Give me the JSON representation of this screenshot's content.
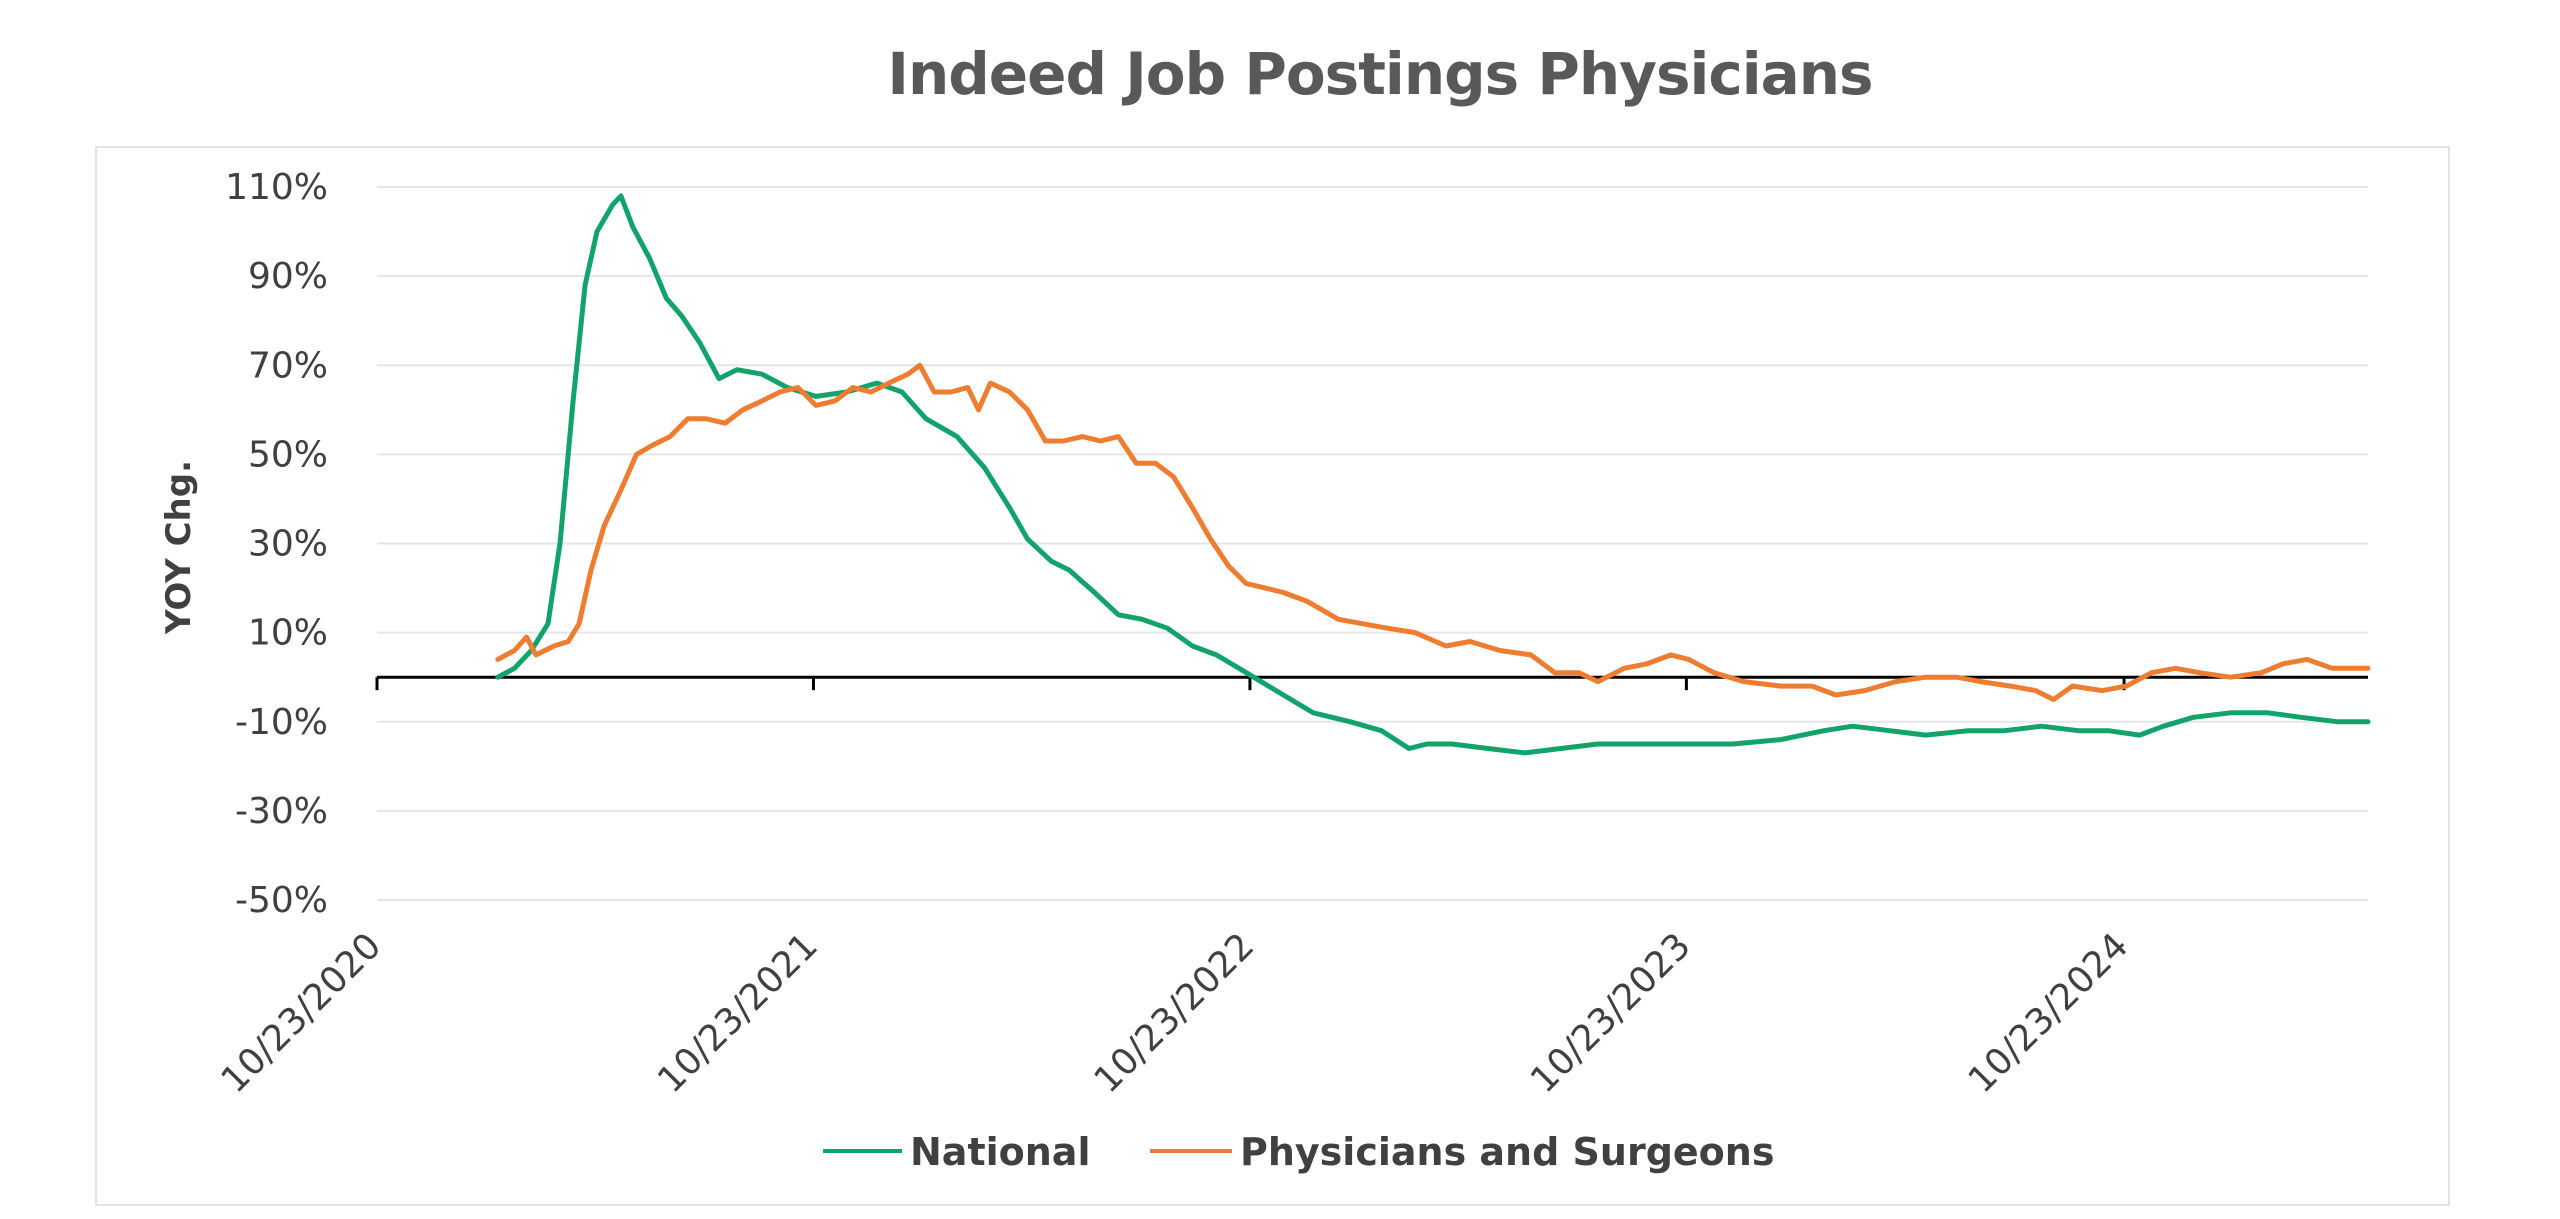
{
  "chart_data": {
    "type": "line",
    "title": "Indeed Job Postings Physicians",
    "ylabel": "YOY Chg.",
    "xlabel": "",
    "ylim": [
      -50,
      110
    ],
    "yticks": [
      "110%",
      "90%",
      "70%",
      "50%",
      "30%",
      "10%",
      "-10%",
      "-30%",
      "-50%"
    ],
    "ytick_values": [
      110,
      90,
      70,
      50,
      30,
      10,
      -10,
      -30,
      -50
    ],
    "xticks": [
      "10/23/2020",
      "10/23/2021",
      "10/23/2022",
      "10/23/2023",
      "10/23/2024"
    ],
    "xlim": [
      "2020-10-23",
      "2025-05-15"
    ],
    "grid": true,
    "legend_position": "bottom",
    "series": [
      {
        "name": "National",
        "color": "#12a36a",
        "points": [
          [
            "2021-02-01",
            0
          ],
          [
            "2021-02-15",
            2
          ],
          [
            "2021-03-01",
            6
          ],
          [
            "2021-03-15",
            12
          ],
          [
            "2021-03-25",
            30
          ],
          [
            "2021-04-05",
            62
          ],
          [
            "2021-04-15",
            88
          ],
          [
            "2021-04-25",
            100
          ],
          [
            "2021-05-08",
            106
          ],
          [
            "2021-05-15",
            108
          ],
          [
            "2021-05-25",
            101
          ],
          [
            "2021-06-08",
            94
          ],
          [
            "2021-06-22",
            85
          ],
          [
            "2021-07-05",
            81
          ],
          [
            "2021-07-20",
            75
          ],
          [
            "2021-08-05",
            67
          ],
          [
            "2021-08-20",
            69
          ],
          [
            "2021-09-10",
            68
          ],
          [
            "2021-10-01",
            65
          ],
          [
            "2021-10-25",
            63
          ],
          [
            "2021-11-20",
            64
          ],
          [
            "2021-12-15",
            66
          ],
          [
            "2022-01-05",
            64
          ],
          [
            "2022-01-25",
            58
          ],
          [
            "2022-02-20",
            54
          ],
          [
            "2022-03-15",
            47
          ],
          [
            "2022-04-05",
            38
          ],
          [
            "2022-04-20",
            31
          ],
          [
            "2022-05-10",
            26
          ],
          [
            "2022-05-25",
            24
          ],
          [
            "2022-06-15",
            19
          ],
          [
            "2022-07-05",
            14
          ],
          [
            "2022-07-25",
            13
          ],
          [
            "2022-08-15",
            11
          ],
          [
            "2022-09-05",
            7
          ],
          [
            "2022-09-25",
            5
          ],
          [
            "2022-10-20",
            1
          ],
          [
            "2022-11-20",
            -4
          ],
          [
            "2022-12-15",
            -8
          ],
          [
            "2023-01-15",
            -10
          ],
          [
            "2023-02-10",
            -12
          ],
          [
            "2023-03-05",
            -16
          ],
          [
            "2023-03-20",
            -15
          ],
          [
            "2023-04-10",
            -15
          ],
          [
            "2023-05-10",
            -16
          ],
          [
            "2023-06-10",
            -17
          ],
          [
            "2023-07-10",
            -16
          ],
          [
            "2023-08-10",
            -15
          ],
          [
            "2023-09-10",
            -15
          ],
          [
            "2023-10-10",
            -15
          ],
          [
            "2023-11-01",
            -15
          ],
          [
            "2023-12-01",
            -15
          ],
          [
            "2024-01-10",
            -14
          ],
          [
            "2024-02-15",
            -12
          ],
          [
            "2024-03-10",
            -11
          ],
          [
            "2024-04-10",
            -12
          ],
          [
            "2024-05-10",
            -13
          ],
          [
            "2024-06-15",
            -12
          ],
          [
            "2024-07-15",
            -12
          ],
          [
            "2024-08-15",
            -11
          ],
          [
            "2024-09-15",
            -12
          ],
          [
            "2024-10-10",
            -12
          ],
          [
            "2024-11-05",
            -13
          ],
          [
            "2024-11-25",
            -11
          ],
          [
            "2024-12-20",
            -9
          ],
          [
            "2025-01-20",
            -8
          ],
          [
            "2025-02-20",
            -8
          ],
          [
            "2025-03-20",
            -9
          ],
          [
            "2025-04-20",
            -10
          ],
          [
            "2025-05-15",
            -10
          ]
        ]
      },
      {
        "name": "Physicians and Surgeons",
        "color": "#ee7d31",
        "points": [
          [
            "2021-02-01",
            4
          ],
          [
            "2021-02-15",
            6
          ],
          [
            "2021-02-25",
            9
          ],
          [
            "2021-03-05",
            5
          ],
          [
            "2021-03-20",
            7
          ],
          [
            "2021-04-01",
            8
          ],
          [
            "2021-04-10",
            12
          ],
          [
            "2021-04-20",
            24
          ],
          [
            "2021-05-01",
            34
          ],
          [
            "2021-05-15",
            42
          ],
          [
            "2021-05-28",
            50
          ],
          [
            "2021-06-10",
            52
          ],
          [
            "2021-06-25",
            54
          ],
          [
            "2021-07-10",
            58
          ],
          [
            "2021-07-25",
            58
          ],
          [
            "2021-08-10",
            57
          ],
          [
            "2021-08-25",
            60
          ],
          [
            "2021-09-10",
            62
          ],
          [
            "2021-09-25",
            64
          ],
          [
            "2021-10-10",
            65
          ],
          [
            "2021-10-25",
            61
          ],
          [
            "2021-11-10",
            62
          ],
          [
            "2021-11-25",
            65
          ],
          [
            "2021-12-10",
            64
          ],
          [
            "2021-12-25",
            66
          ],
          [
            "2022-01-10",
            68
          ],
          [
            "2022-01-20",
            70
          ],
          [
            "2022-02-01",
            64
          ],
          [
            "2022-02-15",
            64
          ],
          [
            "2022-03-01",
            65
          ],
          [
            "2022-03-10",
            60
          ],
          [
            "2022-03-20",
            66
          ],
          [
            "2022-04-05",
            64
          ],
          [
            "2022-04-20",
            60
          ],
          [
            "2022-05-05",
            53
          ],
          [
            "2022-05-20",
            53
          ],
          [
            "2022-06-05",
            54
          ],
          [
            "2022-06-20",
            53
          ],
          [
            "2022-07-05",
            54
          ],
          [
            "2022-07-20",
            48
          ],
          [
            "2022-08-05",
            48
          ],
          [
            "2022-08-20",
            45
          ],
          [
            "2022-09-05",
            38
          ],
          [
            "2022-09-20",
            31
          ],
          [
            "2022-10-05",
            25
          ],
          [
            "2022-10-20",
            21
          ],
          [
            "2022-11-05",
            20
          ],
          [
            "2022-11-20",
            19
          ],
          [
            "2022-12-10",
            17
          ],
          [
            "2023-01-05",
            13
          ],
          [
            "2023-01-25",
            12
          ],
          [
            "2023-02-15",
            11
          ],
          [
            "2023-03-10",
            10
          ],
          [
            "2023-04-05",
            7
          ],
          [
            "2023-04-25",
            8
          ],
          [
            "2023-05-20",
            6
          ],
          [
            "2023-06-15",
            5
          ],
          [
            "2023-07-05",
            1
          ],
          [
            "2023-07-25",
            1
          ],
          [
            "2023-08-10",
            -1
          ],
          [
            "2023-09-01",
            2
          ],
          [
            "2023-09-20",
            3
          ],
          [
            "2023-10-10",
            5
          ],
          [
            "2023-10-25",
            4
          ],
          [
            "2023-11-15",
            1
          ],
          [
            "2023-12-10",
            -1
          ],
          [
            "2024-01-10",
            -2
          ],
          [
            "2024-02-05",
            -2
          ],
          [
            "2024-02-25",
            -4
          ],
          [
            "2024-03-20",
            -3
          ],
          [
            "2024-04-15",
            -1
          ],
          [
            "2024-05-10",
            0
          ],
          [
            "2024-06-05",
            0
          ],
          [
            "2024-06-25",
            -1
          ],
          [
            "2024-07-20",
            -2
          ],
          [
            "2024-08-10",
            -3
          ],
          [
            "2024-08-25",
            -5
          ],
          [
            "2024-09-10",
            -2
          ],
          [
            "2024-10-05",
            -3
          ],
          [
            "2024-10-25",
            -2
          ],
          [
            "2024-11-15",
            1
          ],
          [
            "2024-12-05",
            2
          ],
          [
            "2024-12-25",
            1
          ],
          [
            "2025-01-20",
            0
          ],
          [
            "2025-02-15",
            1
          ],
          [
            "2025-03-05",
            3
          ],
          [
            "2025-03-25",
            4
          ],
          [
            "2025-04-15",
            2
          ],
          [
            "2025-05-15",
            2
          ]
        ]
      }
    ]
  }
}
